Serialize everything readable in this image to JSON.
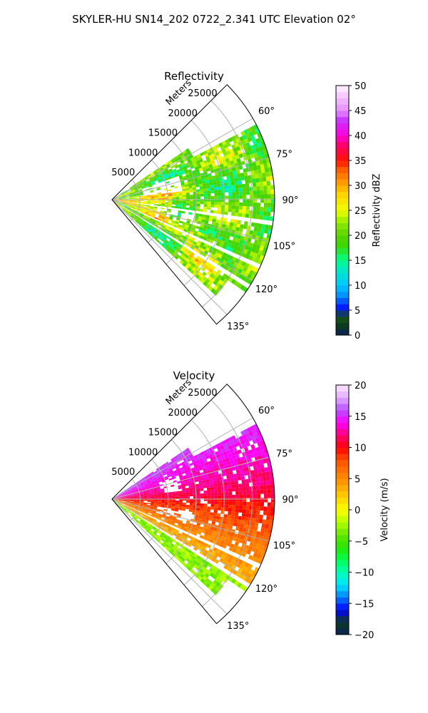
{
  "figure": {
    "suptitle": "SKYLER-HU  SN14_202  0722_2.341 UTC Elevation 02°"
  },
  "chart_data": [
    {
      "type": "heatmap",
      "subtype": "polar-sector PPI",
      "title": "Reflectivity",
      "radial_label": "Meters",
      "r_ticks": [
        5000,
        10000,
        15000,
        20000,
        25000
      ],
      "r_tick_labels": [
        "5000",
        "10000",
        "15000",
        "20000",
        "25000"
      ],
      "rlim": [
        0,
        29000
      ],
      "theta_ticks": [
        60,
        75,
        90,
        105,
        120,
        135
      ],
      "theta_tick_labels": [
        "60°",
        "75°",
        "90°",
        "105°",
        "120°",
        "135°"
      ],
      "theta_range_deg": [
        45,
        140
      ],
      "grid": true,
      "colorbar": {
        "label": "Reflectivity dBZ",
        "range": [
          0,
          50
        ],
        "ticks": [
          0,
          5,
          10,
          15,
          20,
          25,
          30,
          35,
          40,
          45,
          50
        ],
        "tick_labels": [
          "0",
          "5",
          "10",
          "15",
          "20",
          "25",
          "30",
          "35",
          "40",
          "45",
          "50"
        ],
        "colormap": "pyart_NWSRef",
        "stops": [
          {
            "v": 0,
            "color": "#0a1f5a"
          },
          {
            "v": 2,
            "color": "#0d3d1e"
          },
          {
            "v": 4,
            "color": "#1a5a1a"
          },
          {
            "v": 5,
            "color": "#0000ff"
          },
          {
            "v": 8,
            "color": "#0090ff"
          },
          {
            "v": 10,
            "color": "#00c8ff"
          },
          {
            "v": 13,
            "color": "#00e6c8"
          },
          {
            "v": 15,
            "color": "#00ff8c"
          },
          {
            "v": 18,
            "color": "#3cd700"
          },
          {
            "v": 20,
            "color": "#58d200"
          },
          {
            "v": 23,
            "color": "#a0f000"
          },
          {
            "v": 25,
            "color": "#f0ff00"
          },
          {
            "v": 28,
            "color": "#ffd700"
          },
          {
            "v": 30,
            "color": "#ffaa00"
          },
          {
            "v": 33,
            "color": "#ff6400"
          },
          {
            "v": 35,
            "color": "#ff1400"
          },
          {
            "v": 38,
            "color": "#ff0064"
          },
          {
            "v": 40,
            "color": "#ff00dc"
          },
          {
            "v": 43,
            "color": "#c832ff"
          },
          {
            "v": 45,
            "color": "#e68cff"
          },
          {
            "v": 48,
            "color": "#f5c8ff"
          },
          {
            "v": 50,
            "color": "#fff5ff"
          }
        ]
      }
    },
    {
      "type": "heatmap",
      "subtype": "polar-sector PPI",
      "title": "Velocity",
      "radial_label": "Meters",
      "r_ticks": [
        5000,
        10000,
        15000,
        20000,
        25000
      ],
      "r_tick_labels": [
        "5000",
        "10000",
        "15000",
        "20000",
        "25000"
      ],
      "rlim": [
        0,
        29000
      ],
      "theta_ticks": [
        60,
        75,
        90,
        105,
        120,
        135
      ],
      "theta_tick_labels": [
        "60°",
        "75°",
        "90°",
        "105°",
        "120°",
        "135°"
      ],
      "theta_range_deg": [
        45,
        140
      ],
      "grid": true,
      "colorbar": {
        "label": "Velocity (m/s)",
        "range": [
          -20,
          20
        ],
        "ticks": [
          -20,
          -15,
          -10,
          -5,
          0,
          5,
          10,
          15,
          20
        ],
        "tick_labels": [
          "−20",
          "−15",
          "−10",
          "−5",
          "0",
          "5",
          "10",
          "15",
          "20"
        ],
        "colormap": "pyart_NWSVel",
        "stops": [
          {
            "v": -20,
            "color": "#0a1f5a"
          },
          {
            "v": -18,
            "color": "#0d3d1e"
          },
          {
            "v": -16,
            "color": "#0000ff"
          },
          {
            "v": -14,
            "color": "#0080ff"
          },
          {
            "v": -12,
            "color": "#00e6ff"
          },
          {
            "v": -10,
            "color": "#00ffb4"
          },
          {
            "v": -8,
            "color": "#00ff50"
          },
          {
            "v": -6,
            "color": "#28e600"
          },
          {
            "v": -4,
            "color": "#64e600"
          },
          {
            "v": -2,
            "color": "#b4ff00"
          },
          {
            "v": 0,
            "color": "#ffff00"
          },
          {
            "v": 2,
            "color": "#ffd200"
          },
          {
            "v": 4,
            "color": "#ffa000"
          },
          {
            "v": 6,
            "color": "#ff7800"
          },
          {
            "v": 8,
            "color": "#ff5000"
          },
          {
            "v": 10,
            "color": "#ff0000"
          },
          {
            "v": 12,
            "color": "#ff0078"
          },
          {
            "v": 14,
            "color": "#ff00ff"
          },
          {
            "v": 16,
            "color": "#b450ff"
          },
          {
            "v": 18,
            "color": "#e6aaff"
          },
          {
            "v": 20,
            "color": "#fae6ff"
          }
        ]
      }
    }
  ]
}
